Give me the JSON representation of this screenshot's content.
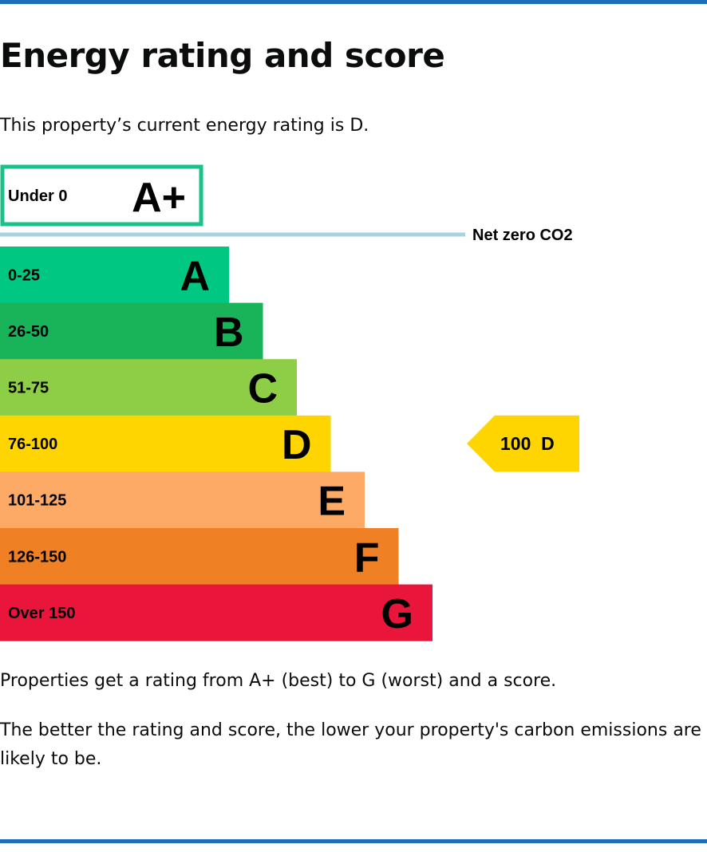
{
  "page": {
    "title": "Energy rating and score",
    "intro": "This property’s current energy rating is D.",
    "note_1": "Properties get a rating from A+ (best) to G (worst) and a score.",
    "note_2": "The better the rating and score, the lower your property's carbon emissions are likely to be."
  },
  "colors": {
    "rule": "#1d70b8",
    "net_zero_line": "#a8d4e1",
    "A+": "#19c28a",
    "A": "#00c781",
    "B": "#19b459",
    "C": "#8dce46",
    "D": "#ffd500",
    "E": "#fcaa65",
    "F": "#ef8023",
    "G": "#e9153b"
  },
  "chart_data": {
    "type": "bar",
    "net_zero_label": "Net zero CO2",
    "bands": [
      {
        "letter": "A+",
        "range": "Under 0",
        "style": "outline"
      },
      {
        "letter": "A",
        "range": "0-25"
      },
      {
        "letter": "B",
        "range": "26-50"
      },
      {
        "letter": "C",
        "range": "51-75"
      },
      {
        "letter": "D",
        "range": "76-100"
      },
      {
        "letter": "E",
        "range": "101-125"
      },
      {
        "letter": "F",
        "range": "126-150"
      },
      {
        "letter": "G",
        "range": "Over 150"
      }
    ],
    "current": {
      "score": 100,
      "band": "D",
      "label": "100  D"
    }
  }
}
